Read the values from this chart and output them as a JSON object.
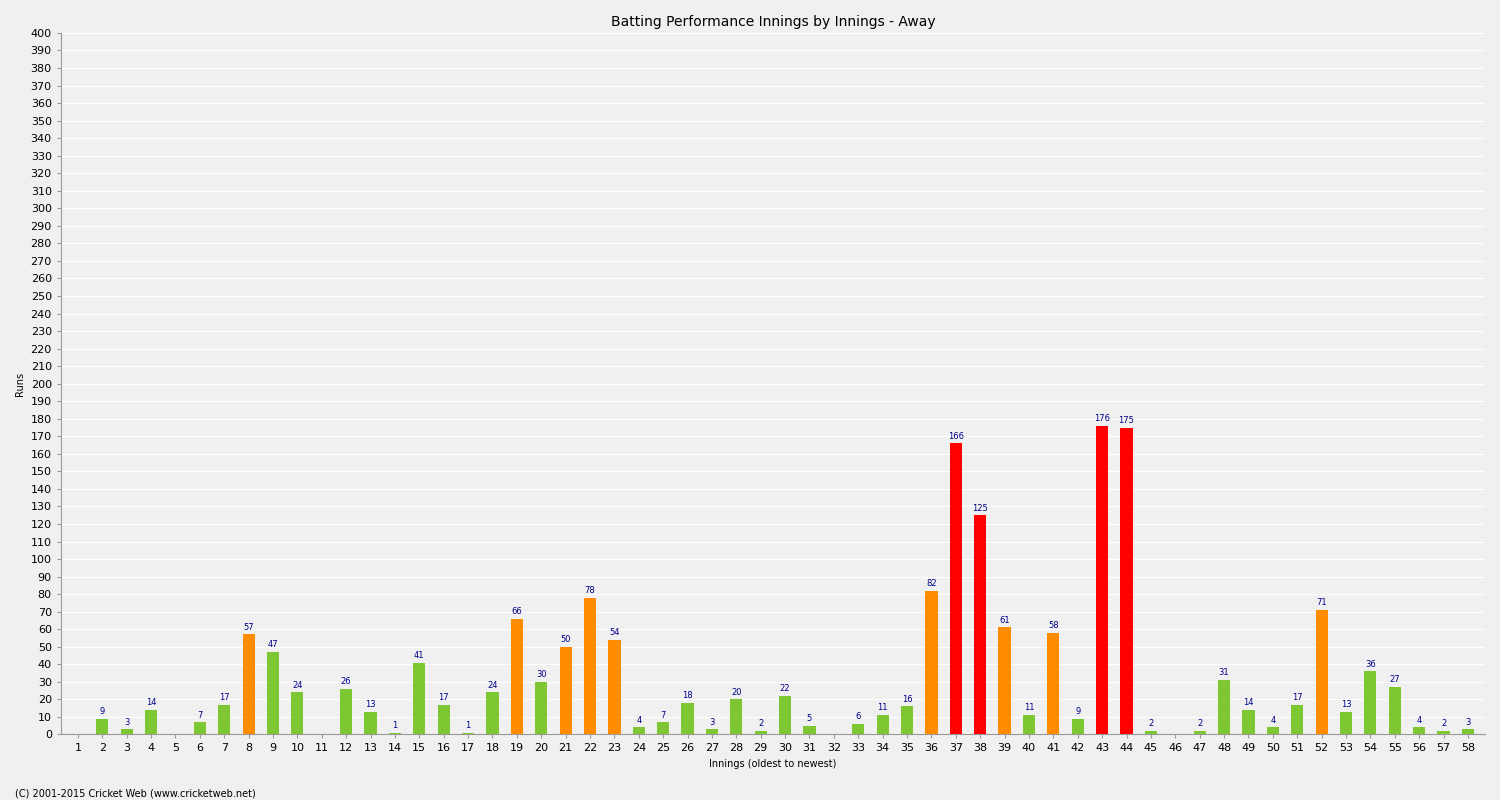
{
  "title": "Batting Performance Innings by Innings - Away",
  "xlabel": "Innings (oldest to newest)",
  "ylabel": "Runs",
  "values": [
    0,
    9,
    3,
    14,
    0,
    7,
    17,
    57,
    47,
    24,
    0,
    26,
    13,
    1,
    41,
    17,
    1,
    24,
    66,
    30,
    50,
    78,
    54,
    4,
    7,
    18,
    3,
    20,
    2,
    22,
    5,
    0,
    6,
    11,
    16,
    82,
    166,
    125,
    61,
    11,
    58,
    9,
    176,
    175,
    2,
    0,
    2,
    31,
    14,
    4,
    17,
    71,
    13,
    36,
    27,
    4,
    2,
    3
  ],
  "innings": [
    1,
    2,
    3,
    4,
    5,
    6,
    7,
    8,
    9,
    10,
    11,
    12,
    13,
    14,
    15,
    16,
    17,
    18,
    19,
    20,
    21,
    22,
    23,
    24,
    25,
    26,
    27,
    28,
    29,
    30,
    31,
    32,
    33,
    34,
    35,
    36,
    37,
    38,
    39,
    40,
    41,
    42,
    43,
    44,
    45,
    46,
    47,
    48,
    49,
    50,
    51,
    52,
    53,
    54,
    55,
    56,
    57,
    58
  ],
  "color_green": "#7dc832",
  "color_orange": "#ff8c00",
  "color_red": "#ff0000",
  "color_label": "#00008b",
  "background_color": "#f0f0f0",
  "plot_bg_color": "#f0f0f0",
  "grid_color": "#ffffff",
  "footer": "(C) 2001-2015 Cricket Web (www.cricketweb.net)",
  "ylim": [
    0,
    400
  ],
  "ytick_step": 10,
  "title_fontsize": 10,
  "label_fontsize": 7,
  "tick_fontsize": 8,
  "footer_fontsize": 7
}
